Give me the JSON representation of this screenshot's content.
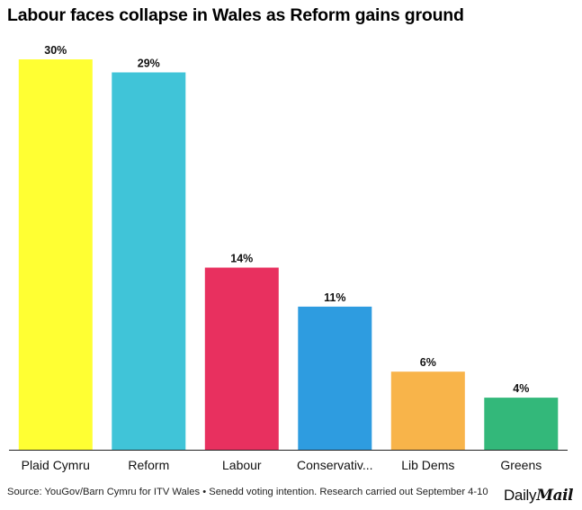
{
  "title": "Labour faces collapse in Wales as Reform gains ground",
  "footer": {
    "source": "Source: YouGov/Barn Cymru for ITV Wales • Senedd voting intention. Research carried out September 4-10"
  },
  "logo": {
    "daily": "Daily",
    "mail": "Mail"
  },
  "chart_data": {
    "type": "bar",
    "title": "Labour faces collapse in Wales as Reform gains ground",
    "xlabel": "",
    "ylabel": "",
    "categories": [
      "Plaid Cymru",
      "Reform",
      "Labour",
      "Conservativ...",
      "Lib Dems",
      "Greens"
    ],
    "values": [
      30,
      29,
      14,
      11,
      6,
      4
    ],
    "value_labels": [
      "30%",
      "29%",
      "14%",
      "11%",
      "6%",
      "4%"
    ],
    "colors": [
      "#ffff33",
      "#40c4d8",
      "#e8305f",
      "#2e9ce0",
      "#f8b44a",
      "#33b87a"
    ],
    "ylim": [
      0,
      30
    ],
    "grid": false,
    "legend": "none"
  }
}
